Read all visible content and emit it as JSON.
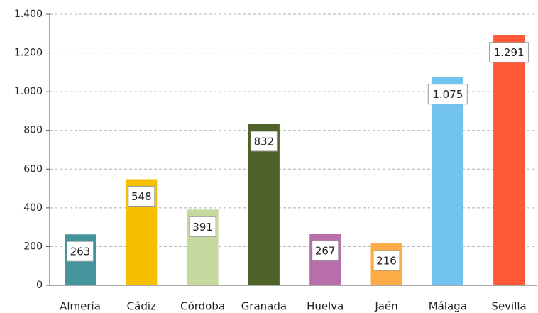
{
  "chart_data": {
    "type": "bar",
    "categories": [
      "Almería",
      "Cádiz",
      "Córdoba",
      "Granada",
      "Huelva",
      "Jaén",
      "Málaga",
      "Sevilla"
    ],
    "values": [
      263,
      548,
      391,
      832,
      267,
      216,
      1075,
      1291
    ],
    "value_labels": [
      "263",
      "548",
      "391",
      "832",
      "267",
      "216",
      "1.075",
      "1.291"
    ],
    "colors": [
      "#43959b",
      "#f5c000",
      "#c5d89d",
      "#4f6228",
      "#b86ea8",
      "#fbac45",
      "#72c4ee",
      "#fe5a38"
    ],
    "ylim": [
      0,
      1400
    ],
    "yticks": [
      0,
      200,
      400,
      600,
      800,
      {
        "value": 1000,
        "label": "1.000"
      },
      {
        "value": 1200,
        "label": "1.200"
      },
      {
        "value": 1400,
        "label": "1.400"
      }
    ],
    "grid": true
  }
}
